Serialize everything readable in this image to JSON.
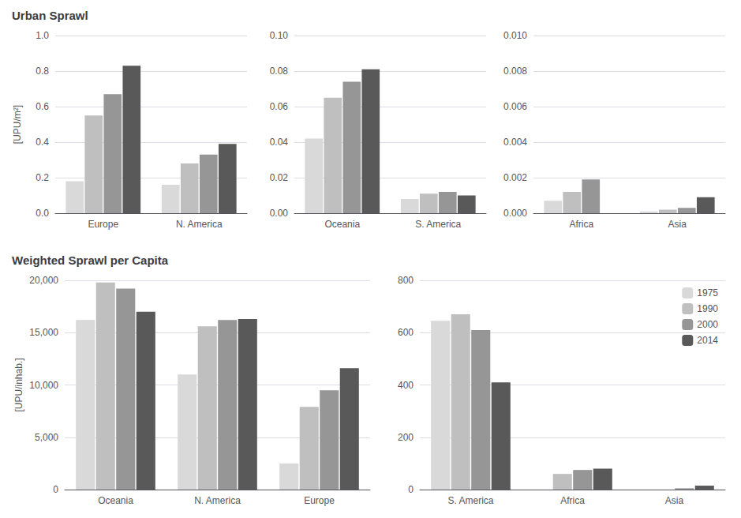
{
  "chart_data": [
    {
      "type": "bar",
      "title": "Urban Sprawl",
      "ylabel": "[UPU/m²]",
      "categories": [
        "Europe",
        "N. America"
      ],
      "series": [
        {
          "name": "1975",
          "color": "#d9d9d9",
          "values": [
            0.18,
            0.16
          ]
        },
        {
          "name": "1990",
          "color": "#bfbfbf",
          "values": [
            0.55,
            0.28
          ]
        },
        {
          "name": "2000",
          "color": "#969696",
          "values": [
            0.67,
            0.33
          ]
        },
        {
          "name": "2014",
          "color": "#595959",
          "values": [
            0.83,
            0.39
          ]
        }
      ],
      "ylim": [
        0,
        1.0
      ],
      "yticks": [
        {
          "value": 0,
          "label": "0.0"
        },
        0.2,
        0.4,
        0.6,
        0.8,
        {
          "value": 1.0,
          "label": "1.0"
        }
      ],
      "grid": true
    },
    {
      "type": "bar",
      "categories": [
        "Oceania",
        "S. America"
      ],
      "series": [
        {
          "name": "1975",
          "color": "#d9d9d9",
          "values": [
            0.042,
            0.008
          ]
        },
        {
          "name": "1990",
          "color": "#bfbfbf",
          "values": [
            0.065,
            0.011
          ]
        },
        {
          "name": "2000",
          "color": "#969696",
          "values": [
            0.074,
            0.012
          ]
        },
        {
          "name": "2014",
          "color": "#595959",
          "values": [
            0.081,
            0.01
          ]
        }
      ],
      "ylim": [
        0,
        0.1
      ],
      "yticks": [
        {
          "value": 0,
          "label": "0.00"
        },
        0.02,
        0.04,
        0.06,
        0.08,
        {
          "value": 0.1,
          "label": "0.10"
        }
      ],
      "grid": true
    },
    {
      "type": "bar",
      "categories": [
        "Africa",
        "Asia"
      ],
      "series": [
        {
          "name": "1975",
          "color": "#d9d9d9",
          "values": [
            0.0007,
            0.0001
          ]
        },
        {
          "name": "1990",
          "color": "#bfbfbf",
          "values": [
            0.0012,
            0.0002
          ]
        },
        {
          "name": "2000",
          "color": "#969696",
          "values": [
            0.0019,
            0.0003
          ]
        },
        {
          "name": "2014",
          "color": "#595959",
          "values": [
            0.0,
            0.0009
          ]
        }
      ],
      "ylim": [
        0,
        0.01
      ],
      "yticks": [
        {
          "value": 0,
          "label": "0.000"
        },
        0.002,
        0.004,
        0.006,
        0.008,
        {
          "value": 0.01,
          "label": "0.010"
        }
      ],
      "grid": true
    },
    {
      "type": "bar",
      "title": "Weighted Sprawl per Capita",
      "ylabel": "[UPU/inhab.]",
      "categories": [
        "Oceania",
        "N. America",
        "Europe"
      ],
      "series": [
        {
          "name": "1975",
          "color": "#d9d9d9",
          "values": [
            16200,
            11000,
            2500
          ]
        },
        {
          "name": "1990",
          "color": "#bfbfbf",
          "values": [
            19800,
            15600,
            7900
          ]
        },
        {
          "name": "2000",
          "color": "#969696",
          "values": [
            19200,
            16200,
            9500
          ]
        },
        {
          "name": "2014",
          "color": "#595959",
          "values": [
            17000,
            16300,
            11600
          ]
        }
      ],
      "ylim": [
        0,
        20000
      ],
      "yticks": [
        0,
        {
          "value": 5000,
          "label": "5,000"
        },
        {
          "value": 10000,
          "label": "10,000"
        },
        {
          "value": 15000,
          "label": "15,000"
        },
        {
          "value": 20000,
          "label": "20,000"
        }
      ],
      "grid": true
    },
    {
      "type": "bar",
      "categories": [
        "S. America",
        "Africa",
        "Asia"
      ],
      "series": [
        {
          "name": "1975",
          "color": "#d9d9d9",
          "values": [
            645,
            0,
            0
          ]
        },
        {
          "name": "1990",
          "color": "#bfbfbf",
          "values": [
            670,
            60,
            0
          ]
        },
        {
          "name": "2000",
          "color": "#969696",
          "values": [
            610,
            75,
            5
          ]
        },
        {
          "name": "2014",
          "color": "#595959",
          "values": [
            410,
            80,
            15
          ]
        }
      ],
      "ylim": [
        0,
        800
      ],
      "yticks": [
        0,
        200,
        400,
        600,
        800
      ],
      "grid": true,
      "legend": "upper right"
    }
  ]
}
